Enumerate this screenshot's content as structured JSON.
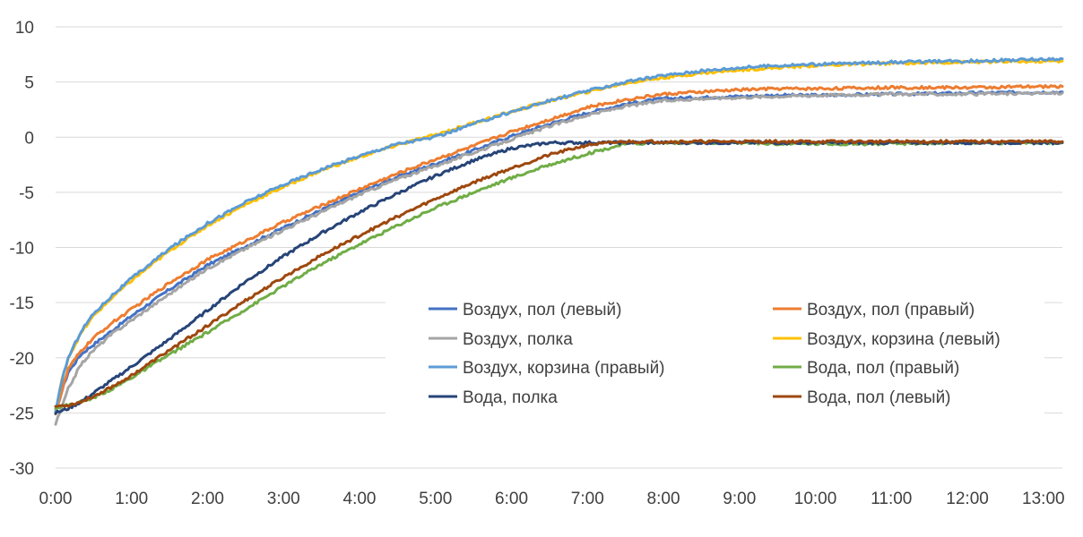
{
  "chart_data": {
    "type": "line",
    "title": "",
    "xlabel": "",
    "ylabel": "",
    "x_unit": "minutes",
    "xlim": [
      0,
      795
    ],
    "ylim": [
      -30,
      10
    ],
    "x_ticks": [
      {
        "value": 0,
        "label": "0:00"
      },
      {
        "value": 60,
        "label": "1:00"
      },
      {
        "value": 120,
        "label": "2:00"
      },
      {
        "value": 180,
        "label": "3:00"
      },
      {
        "value": 240,
        "label": "4:00"
      },
      {
        "value": 300,
        "label": "5:00"
      },
      {
        "value": 360,
        "label": "6:00"
      },
      {
        "value": 420,
        "label": "7:00"
      },
      {
        "value": 480,
        "label": "8:00"
      },
      {
        "value": 540,
        "label": "9:00"
      },
      {
        "value": 600,
        "label": "10:00"
      },
      {
        "value": 660,
        "label": "11:00"
      },
      {
        "value": 720,
        "label": "12:00"
      },
      {
        "value": 780,
        "label": "13:00"
      }
    ],
    "y_ticks": [
      {
        "value": 10,
        "label": "10"
      },
      {
        "value": 5,
        "label": "5"
      },
      {
        "value": 0,
        "label": "0"
      },
      {
        "value": -5,
        "label": "-5"
      },
      {
        "value": -10,
        "label": "-10"
      },
      {
        "value": -15,
        "label": "-15"
      },
      {
        "value": -20,
        "label": "-20"
      },
      {
        "value": -25,
        "label": "-25"
      },
      {
        "value": -30,
        "label": "-30"
      }
    ],
    "grid": true,
    "legend_position": "center-right",
    "series": [
      {
        "name": "Воздух, пол (левый)",
        "color": "#4472c4",
        "x": [
          0,
          5,
          10,
          20,
          30,
          45,
          60,
          90,
          120,
          150,
          180,
          210,
          240,
          270,
          300,
          330,
          360,
          390,
          420,
          450,
          480,
          510,
          540,
          570,
          600,
          660,
          720,
          795
        ],
        "y": [
          -25,
          -23,
          -21.3,
          -19.7,
          -18.8,
          -17.5,
          -16.2,
          -13.8,
          -11.6,
          -9.9,
          -8.2,
          -6.6,
          -5,
          -3.6,
          -2.4,
          -1.2,
          0.1,
          1.2,
          2.2,
          3,
          3.5,
          3.6,
          3.7,
          3.8,
          3.8,
          3.9,
          4,
          4.1
        ]
      },
      {
        "name": "Воздух, пол (правый)",
        "color": "#ed7d31",
        "x": [
          0,
          5,
          10,
          20,
          30,
          45,
          60,
          90,
          120,
          150,
          180,
          210,
          240,
          270,
          300,
          330,
          360,
          390,
          420,
          450,
          480,
          510,
          540,
          570,
          600,
          660,
          720,
          795
        ],
        "y": [
          -25,
          -23,
          -21,
          -19.4,
          -18.2,
          -16.8,
          -15.6,
          -13.2,
          -11.1,
          -9.4,
          -7.7,
          -6.2,
          -4.7,
          -3.3,
          -2,
          -0.8,
          0.5,
          1.6,
          2.7,
          3.4,
          3.9,
          4.1,
          4.3,
          4.4,
          4.4,
          4.5,
          4.5,
          4.6
        ]
      },
      {
        "name": "Воздух, полка",
        "color": "#a5a5a5",
        "x": [
          0,
          5,
          10,
          20,
          30,
          45,
          60,
          90,
          120,
          150,
          180,
          210,
          240,
          270,
          300,
          330,
          360,
          390,
          420,
          450,
          480,
          510,
          540,
          570,
          600,
          660,
          720,
          795
        ],
        "y": [
          -26,
          -24.5,
          -22.8,
          -20.6,
          -19.3,
          -17.8,
          -16.6,
          -14.2,
          -11.9,
          -10.1,
          -8.4,
          -6.8,
          -5.2,
          -3.8,
          -2.6,
          -1.4,
          -0.2,
          1,
          2,
          2.8,
          3.3,
          3.5,
          3.6,
          3.7,
          3.8,
          3.9,
          3.9,
          4
        ]
      },
      {
        "name": "Воздух, корзина (левый)",
        "color": "#ffc000",
        "x": [
          0,
          5,
          10,
          20,
          30,
          45,
          60,
          90,
          120,
          150,
          180,
          210,
          240,
          270,
          300,
          330,
          360,
          390,
          420,
          450,
          480,
          510,
          540,
          570,
          600,
          660,
          720,
          795
        ],
        "y": [
          -25,
          -22,
          -20,
          -17.8,
          -16.2,
          -14.5,
          -13,
          -10.3,
          -8,
          -6.1,
          -4.5,
          -3,
          -1.8,
          -0.7,
          0.2,
          1.3,
          2.3,
          3.3,
          4.1,
          4.9,
          5.4,
          5.8,
          6.1,
          6.3,
          6.5,
          6.7,
          6.8,
          6.9
        ]
      },
      {
        "name": "Воздух, корзина (правый)",
        "color": "#5b9bd5",
        "x": [
          0,
          5,
          10,
          20,
          30,
          45,
          60,
          90,
          120,
          150,
          180,
          210,
          240,
          270,
          300,
          330,
          360,
          390,
          420,
          450,
          480,
          510,
          540,
          570,
          600,
          660,
          720,
          795
        ],
        "y": [
          -25,
          -22,
          -20,
          -17.6,
          -16,
          -14.3,
          -12.8,
          -10.1,
          -7.8,
          -5.9,
          -4.3,
          -2.9,
          -1.7,
          -0.6,
          0,
          1.2,
          2.3,
          3.3,
          4.2,
          5,
          5.6,
          6,
          6.3,
          6.5,
          6.6,
          6.8,
          6.9,
          7.1
        ]
      },
      {
        "name": "Вода, пол (правый)",
        "color": "#70ad47",
        "x": [
          0,
          10,
          20,
          30,
          45,
          60,
          90,
          120,
          150,
          180,
          210,
          240,
          270,
          300,
          330,
          360,
          390,
          420,
          450,
          480,
          510,
          540,
          570,
          600,
          660,
          720,
          795
        ],
        "y": [
          -24.5,
          -24.3,
          -24,
          -23.6,
          -22.8,
          -21.8,
          -19.7,
          -17.7,
          -15.6,
          -13.5,
          -11.5,
          -9.7,
          -8,
          -6.4,
          -5,
          -3.7,
          -2.5,
          -1.5,
          -0.6,
          -0.5,
          -0.5,
          -0.5,
          -0.6,
          -0.6,
          -0.6,
          -0.5,
          -0.5
        ]
      },
      {
        "name": "Вода, полка",
        "color": "#264478",
        "x": [
          0,
          10,
          20,
          30,
          45,
          60,
          90,
          120,
          150,
          180,
          210,
          240,
          270,
          300,
          330,
          360,
          390,
          420,
          450,
          480,
          510,
          540,
          570,
          600,
          660,
          720,
          795
        ],
        "y": [
          -25,
          -24.6,
          -24,
          -23.2,
          -22,
          -20.8,
          -18.3,
          -15.7,
          -13.1,
          -10.8,
          -8.7,
          -6.8,
          -5.1,
          -3.5,
          -2.1,
          -1,
          -0.5,
          -0.5,
          -0.5,
          -0.5,
          -0.5,
          -0.5,
          -0.5,
          -0.5,
          -0.5,
          -0.5,
          -0.5
        ]
      },
      {
        "name": "Вода, пол (левый)",
        "color": "#9e480e",
        "x": [
          0,
          10,
          20,
          30,
          45,
          60,
          90,
          120,
          150,
          180,
          210,
          240,
          270,
          300,
          330,
          360,
          390,
          420,
          450,
          480,
          510,
          540,
          570,
          600,
          660,
          720,
          795
        ],
        "y": [
          -24.4,
          -24.3,
          -24,
          -23.5,
          -22.6,
          -21.6,
          -19.3,
          -17.1,
          -14.8,
          -12.7,
          -10.7,
          -8.9,
          -7.2,
          -5.6,
          -4.1,
          -2.8,
          -1.6,
          -0.7,
          -0.4,
          -0.4,
          -0.4,
          -0.4,
          -0.4,
          -0.4,
          -0.4,
          -0.4,
          -0.4
        ]
      }
    ]
  }
}
